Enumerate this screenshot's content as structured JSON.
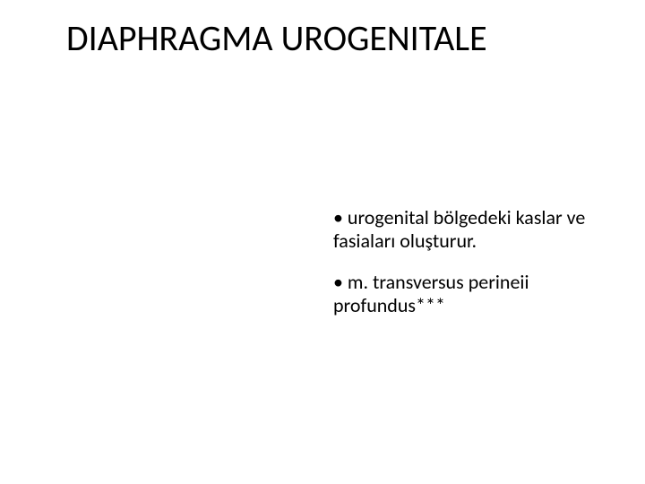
{
  "slide": {
    "title": "DIAPHRAGMA UROGENITALE",
    "bullets": [
      "• urogenital bölgedeki kaslar ve fasiaları oluşturur.",
      "• m. transversus perineii profundus***"
    ]
  },
  "style": {
    "background_color": "#ffffff",
    "title_color": "#000000",
    "title_fontsize": 40,
    "body_color": "#000000",
    "body_fontsize": 22,
    "font_family": "Calibri, Arial, sans-serif"
  }
}
